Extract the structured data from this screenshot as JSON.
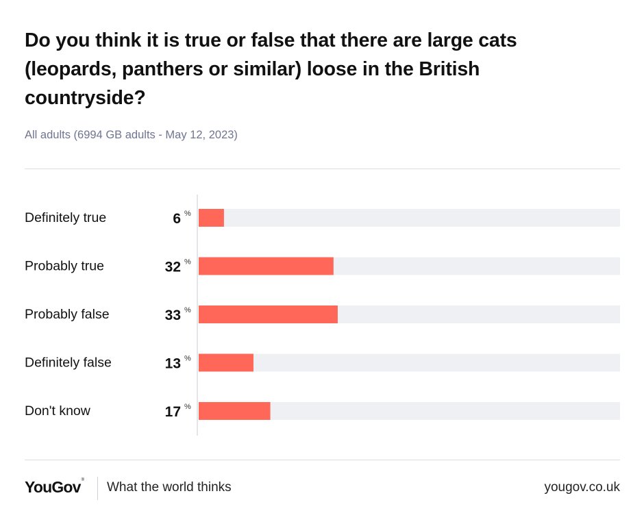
{
  "title": "Do you think it is true or false that there are large cats (leopards, panthers or similar) loose in the British countryside?",
  "subtitle": "All adults (6994 GB adults - May 12, 2023)",
  "colors": {
    "bar": "#ff6759",
    "track": "#eff0f4"
  },
  "chart_data": {
    "type": "bar",
    "orientation": "horizontal",
    "categories": [
      "Definitely true",
      "Probably true",
      "Probably false",
      "Definitely false",
      "Don't know"
    ],
    "values": [
      6,
      32,
      33,
      13,
      17
    ],
    "unit": "%",
    "xlim": [
      0,
      100
    ],
    "grid": false,
    "legend": "none"
  },
  "footer": {
    "logo": "YouGov",
    "logo_mark": "®",
    "tagline": "What the world thinks",
    "site": "yougov.co.uk"
  }
}
